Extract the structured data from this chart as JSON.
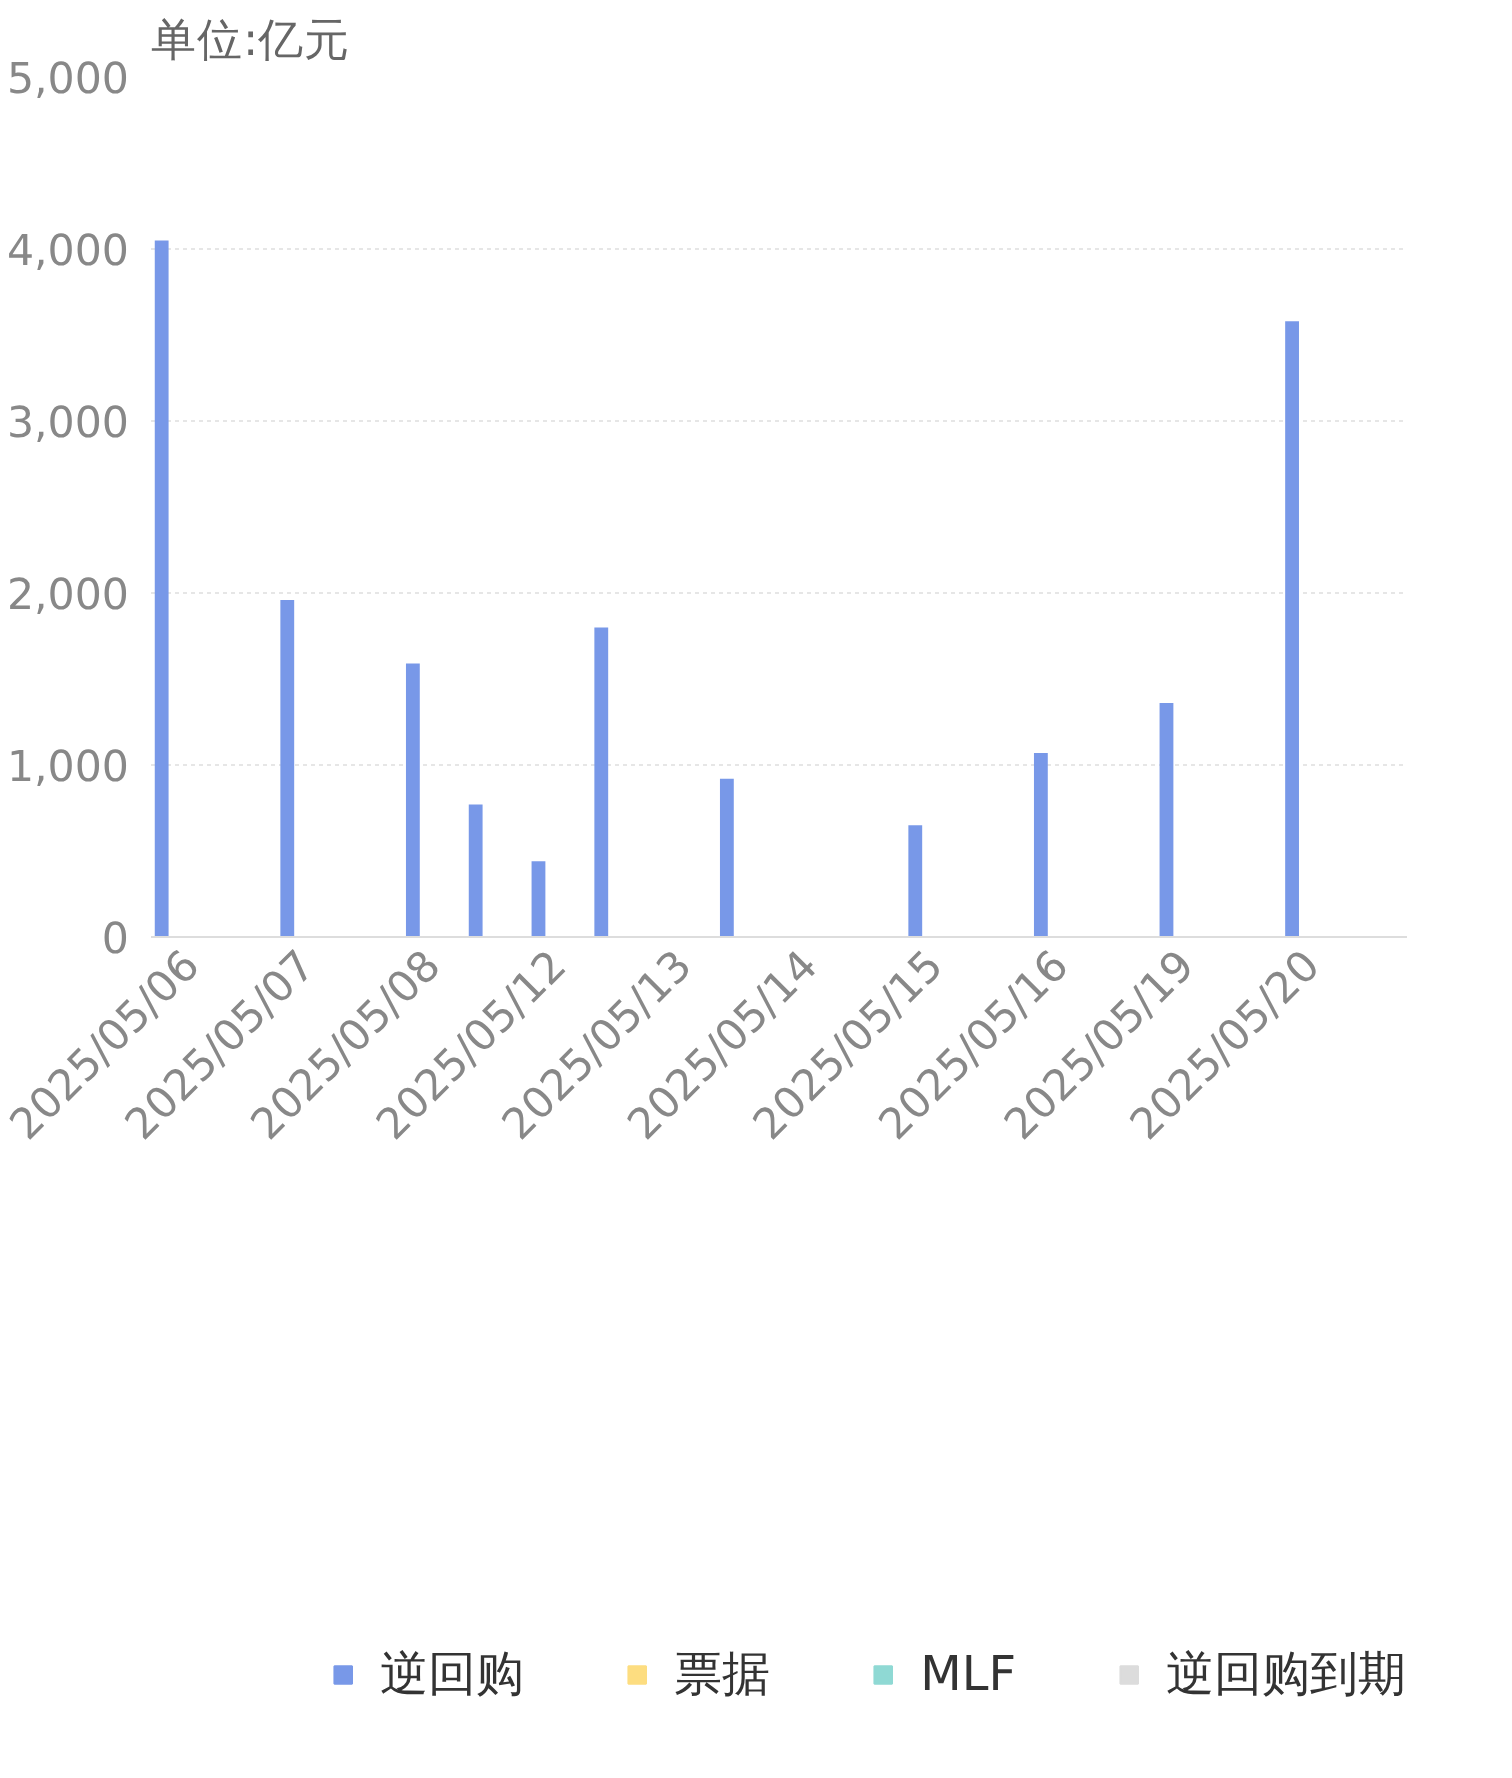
{
  "chart_data": {
    "type": "bar",
    "title": "单位:亿元",
    "categories": [
      "2025/05/06",
      null,
      "2025/05/07",
      null,
      "2025/05/08",
      null,
      "2025/05/12",
      null,
      "2025/05/13",
      null,
      "2025/05/14",
      null,
      "2025/05/15",
      null,
      "2025/05/16",
      null,
      "2025/05/19",
      null,
      "2025/05/20",
      null
    ],
    "series": [
      {
        "name": "逆回购",
        "color": "#7898e8",
        "values": [
          4050,
          null,
          1960,
          null,
          1590,
          770,
          440,
          1800,
          null,
          920,
          null,
          null,
          650,
          null,
          1070,
          null,
          1360,
          null,
          3580,
          null
        ]
      },
      {
        "name": "票据",
        "color": "#fddd80",
        "values": [
          null,
          null,
          null,
          null,
          null,
          null,
          null,
          null,
          null,
          null,
          null,
          null,
          null,
          null,
          null,
          null,
          null,
          null,
          null,
          null
        ]
      },
      {
        "name": "MLF",
        "color": "#8fd9d4",
        "values": [
          null,
          null,
          null,
          null,
          null,
          null,
          null,
          null,
          null,
          null,
          null,
          null,
          null,
          null,
          null,
          null,
          null,
          null,
          null,
          null
        ]
      },
      {
        "name": "逆回购到期",
        "color": "#dcdcdc",
        "values": [
          null,
          null,
          null,
          null,
          null,
          null,
          null,
          null,
          null,
          null,
          null,
          null,
          null,
          null,
          null,
          null,
          null,
          null,
          null,
          null
        ]
      }
    ],
    "ylim": [
      0,
      5000
    ],
    "yticks": [
      {
        "value": 0,
        "label": "0"
      },
      {
        "value": 1000,
        "label": "1,000"
      },
      {
        "value": 2000,
        "label": "2,000"
      },
      {
        "value": 3000,
        "label": "3,000"
      },
      {
        "value": 4000,
        "label": "4,000"
      },
      {
        "value": 5000,
        "label": "5,000"
      }
    ],
    "grid": "y",
    "legend": "bottom"
  }
}
